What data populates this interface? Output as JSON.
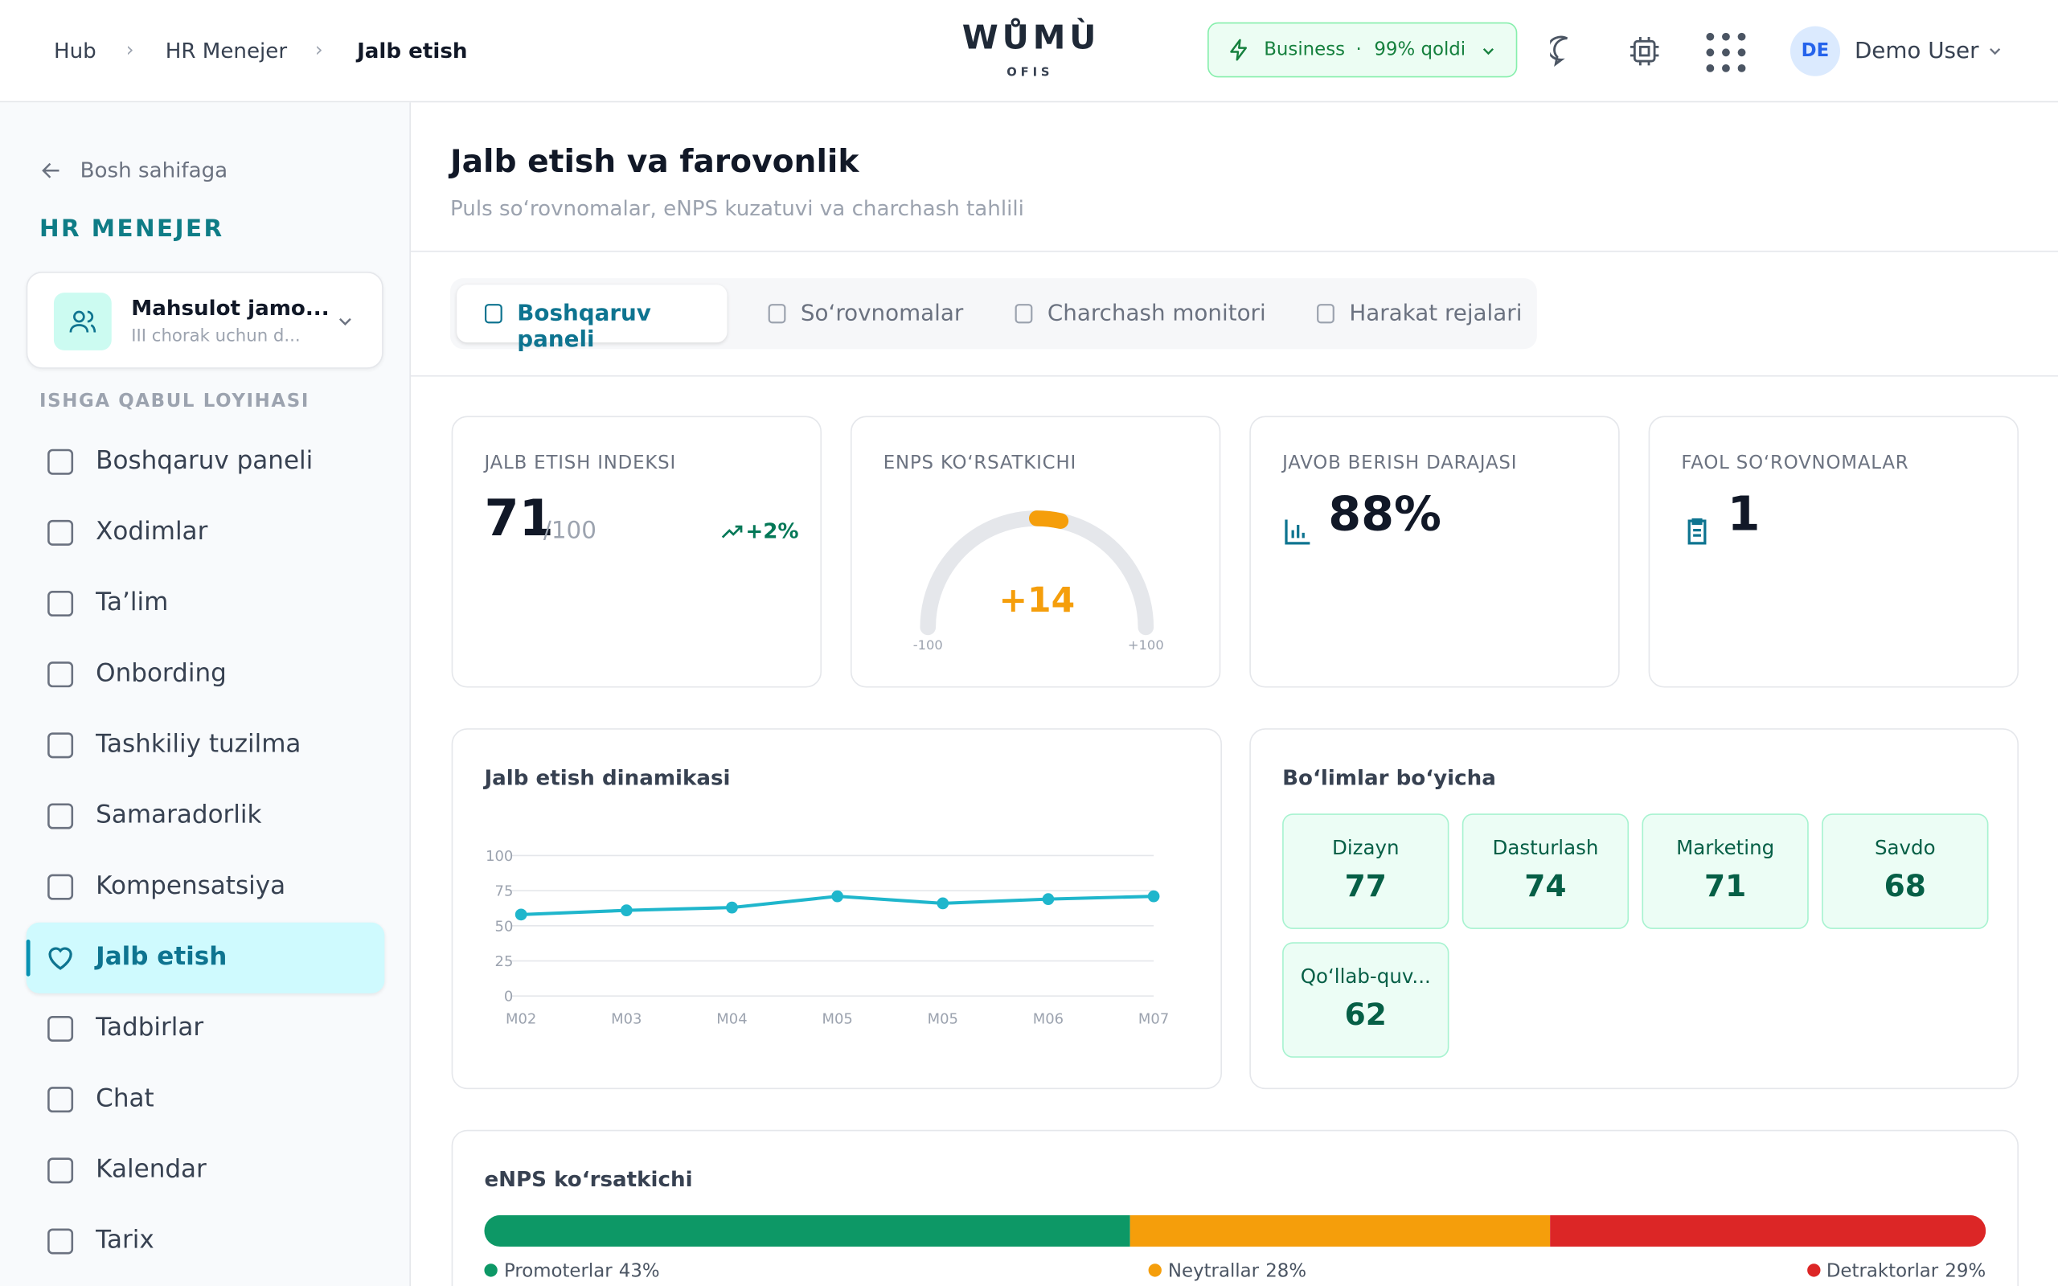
{
  "header": {
    "breadcrumb": [
      "Hub",
      "HR Menejer",
      "Jalb etish"
    ],
    "logo": "WŮMÙ",
    "logo_sub": "OFIS",
    "plan": "Business",
    "plan_sep": "·",
    "plan_left": "99% qoldi",
    "avatar": "DE",
    "user": "Demo User"
  },
  "sidebar": {
    "back": "Bosh sahifaga",
    "section": "HR MENEJER",
    "team": {
      "name": "Mahsulot jamo...",
      "desc": "III chorak uchun d..."
    },
    "group": "ISHGA QABUL LOYIHASI",
    "menu": [
      "Boshqaruv paneli",
      "Xodimlar",
      "Ta’lim",
      "Onbording",
      "Tashkiliy tuzilma",
      "Samaradorlik",
      "Kompensatsiya",
      "Jalb etish",
      "Tadbirlar",
      "Chat",
      "Kalendar",
      "Tarix"
    ]
  },
  "page": {
    "title": "Jalb etish va farovonlik",
    "subtitle": "Puls so‘rovnomalar, eNPS kuzatuvi va charchash tahlili"
  },
  "tabs": [
    "Boshqaruv paneli",
    "So‘rovnomalar",
    "Charchash monitori",
    "Harakat rejalari"
  ],
  "kpis": [
    {
      "label": "JALB ETISH INDEKSI",
      "value": "71",
      "suffix": "/100",
      "trend": "+2%"
    },
    {
      "label": "ENPS KO‘RSATKICHI"
    },
    {
      "label": "JAVOB BERISH DARAJASI",
      "value": "88%"
    },
    {
      "label": "FAOL SO‘ROVNOMALAR",
      "value": "1"
    }
  ],
  "departments": {
    "title": "Bo‘limlar bo‘yicha",
    "items": [
      {
        "name": "Dizayn",
        "value": "77"
      },
      {
        "name": "Dasturlash",
        "value": "74"
      },
      {
        "name": "Marketing",
        "value": "71"
      },
      {
        "name": "Savdo",
        "value": "68"
      },
      {
        "name": "Qo‘llab-quv...",
        "value": "62"
      }
    ]
  },
  "chart_data": [
    {
      "type": "gauge",
      "values": [
        14
      ],
      "value_labels": [
        "+14"
      ],
      "ylim": [
        -100,
        100
      ],
      "yticks": [
        {
          "value": -100,
          "label": "-100"
        },
        {
          "value": 100,
          "label": "+100"
        }
      ],
      "color": "#f59e0b"
    },
    {
      "type": "line",
      "title": "Jalb etish dinamikasi",
      "categories": [
        "M02",
        "M03",
        "M04",
        "M05",
        "M05",
        "M06",
        "M07"
      ],
      "values": [
        58,
        61,
        63,
        71,
        66,
        69,
        71
      ],
      "ylim": [
        0,
        100
      ],
      "yticks": [
        0,
        25,
        50,
        75,
        100
      ],
      "color": "#1fb6cc",
      "grid": true
    },
    {
      "type": "stacked-bar",
      "title": "eNPS ko‘rsatkichi",
      "xlim": [
        0,
        100
      ],
      "series": [
        {
          "name": "Promoterlar",
          "color": "#0d9866",
          "values": [
            43
          ],
          "value_labels": [
            "43%"
          ]
        },
        {
          "name": "Neytrallar",
          "color": "#f59e0b",
          "values": [
            28
          ],
          "value_labels": [
            "28%"
          ]
        },
        {
          "name": "Detraktorlar",
          "color": "#dc2626",
          "values": [
            29
          ],
          "value_labels": [
            "29%"
          ]
        }
      ]
    }
  ]
}
